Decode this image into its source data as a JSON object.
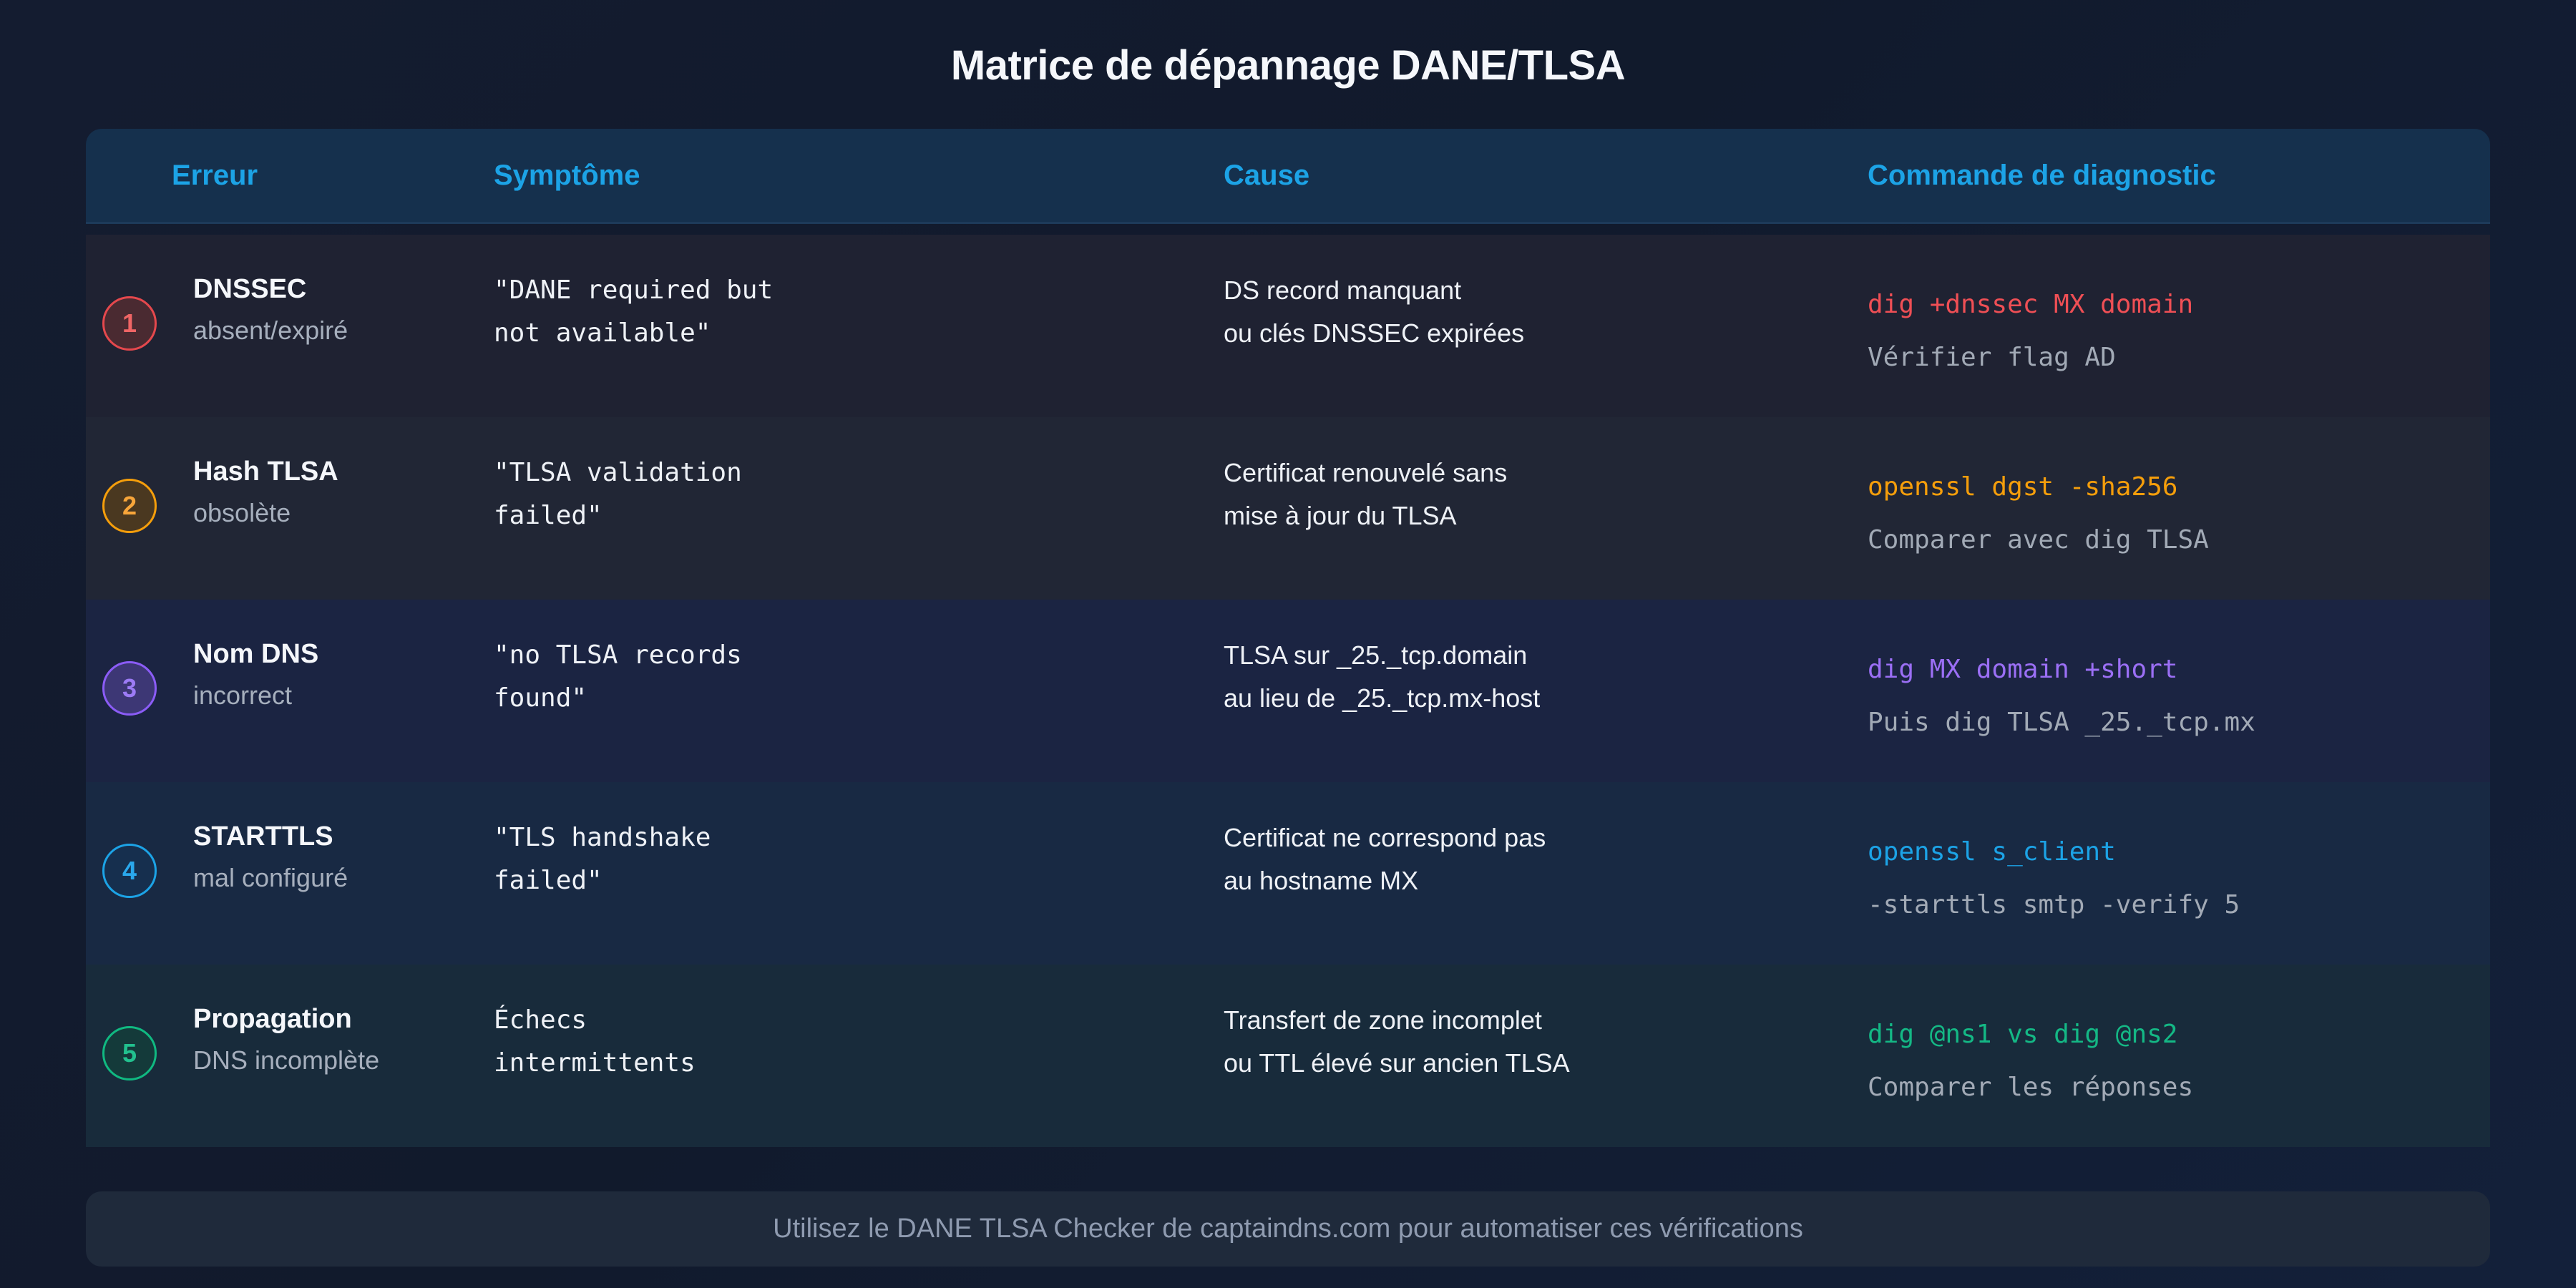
{
  "title": "Matrice de dépannage DANE/TLSA",
  "headers": {
    "error": "Erreur",
    "symptom": "Symptôme",
    "cause": "Cause",
    "command": "Commande de diagnostic"
  },
  "rows": [
    {
      "number": "1",
      "error_name": "DNSSEC",
      "error_sub": "absent/expiré",
      "symptom_l1": "\"DANE required but",
      "symptom_l2": "not available\"",
      "cause_l1": "DS record manquant",
      "cause_l2": "ou clés DNSSEC expirées",
      "cmd": "dig +dnssec MX domain",
      "cmd_sub": "Vérifier flag AD",
      "accent": "#e5484d"
    },
    {
      "number": "2",
      "error_name": "Hash TLSA",
      "error_sub": "obsolète",
      "symptom_l1": "\"TLSA validation",
      "symptom_l2": "failed\"",
      "cause_l1": "Certificat renouvelé sans",
      "cause_l2": "mise à jour du TLSA",
      "cmd": "openssl dgst -sha256",
      "cmd_sub": "Comparer avec dig TLSA",
      "accent": "#f59e0b"
    },
    {
      "number": "3",
      "error_name": "Nom DNS",
      "error_sub": "incorrect",
      "symptom_l1": "\"no TLSA records",
      "symptom_l2": "found\"",
      "cause_l1": "TLSA sur _25._tcp.domain",
      "cause_l2": "au lieu de _25._tcp.mx-host",
      "cmd": "dig MX domain +short",
      "cmd_sub": "Puis dig TLSA _25._tcp.mx",
      "accent": "#8b5cf6"
    },
    {
      "number": "4",
      "error_name": "STARTTLS",
      "error_sub": "mal configuré",
      "symptom_l1": "\"TLS handshake",
      "symptom_l2": "failed\"",
      "cause_l1": "Certificat ne correspond pas",
      "cause_l2": "au hostname MX",
      "cmd": "openssl s_client",
      "cmd_sub": "-starttls smtp -verify 5",
      "accent": "#1ca3e6"
    },
    {
      "number": "5",
      "error_name": "Propagation",
      "error_sub": "DNS incomplète",
      "symptom_l1": "Échecs",
      "symptom_l2": "intermittents",
      "cause_l1": "Transfert de zone incomplet",
      "cause_l2": "ou TTL élevé sur ancien TLSA",
      "cmd": "dig @ns1 vs dig @ns2",
      "cmd_sub": "Comparer les réponses",
      "accent": "#10b981"
    }
  ],
  "footer": "Utilisez le DANE TLSA Checker de captaindns.com pour automatiser ces vérifications"
}
